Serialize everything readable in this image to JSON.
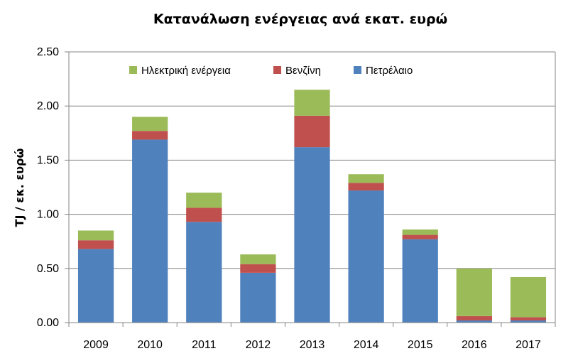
{
  "chart_data": {
    "type": "bar",
    "stacked": true,
    "title": "Κατανάλωση ενέργειας ανά εκατ. ευρώ",
    "xlabel": "",
    "ylabel": "TJ / εκ. ευρώ",
    "ylim": [
      0,
      2.5
    ],
    "yticks": [
      "0.00",
      "0.50",
      "1.00",
      "1.50",
      "2.00",
      "2.50"
    ],
    "grid": true,
    "legend_position": "top",
    "categories": [
      "2009",
      "2010",
      "2011",
      "2012",
      "2013",
      "2014",
      "2015",
      "2016",
      "2017"
    ],
    "series": [
      {
        "name": "Πετρέλαιο",
        "color": "#4F81BD",
        "values": [
          0.68,
          1.69,
          0.93,
          0.46,
          1.62,
          1.22,
          0.77,
          0.02,
          0.02
        ]
      },
      {
        "name": "Βενζίνη",
        "color": "#C0504D",
        "values": [
          0.08,
          0.08,
          0.13,
          0.08,
          0.29,
          0.07,
          0.04,
          0.04,
          0.03
        ]
      },
      {
        "name": "Ηλεκτρική ενέργεια",
        "color": "#9BBB59",
        "values": [
          0.09,
          0.13,
          0.14,
          0.09,
          0.24,
          0.08,
          0.05,
          0.44,
          0.37
        ]
      }
    ],
    "legend_order": [
      "Ηλεκτρική ενέργεια",
      "Βενζίνη",
      "Πετρέλαιο"
    ]
  },
  "colors": {
    "gridline": "#868686",
    "axis": "#868686"
  }
}
